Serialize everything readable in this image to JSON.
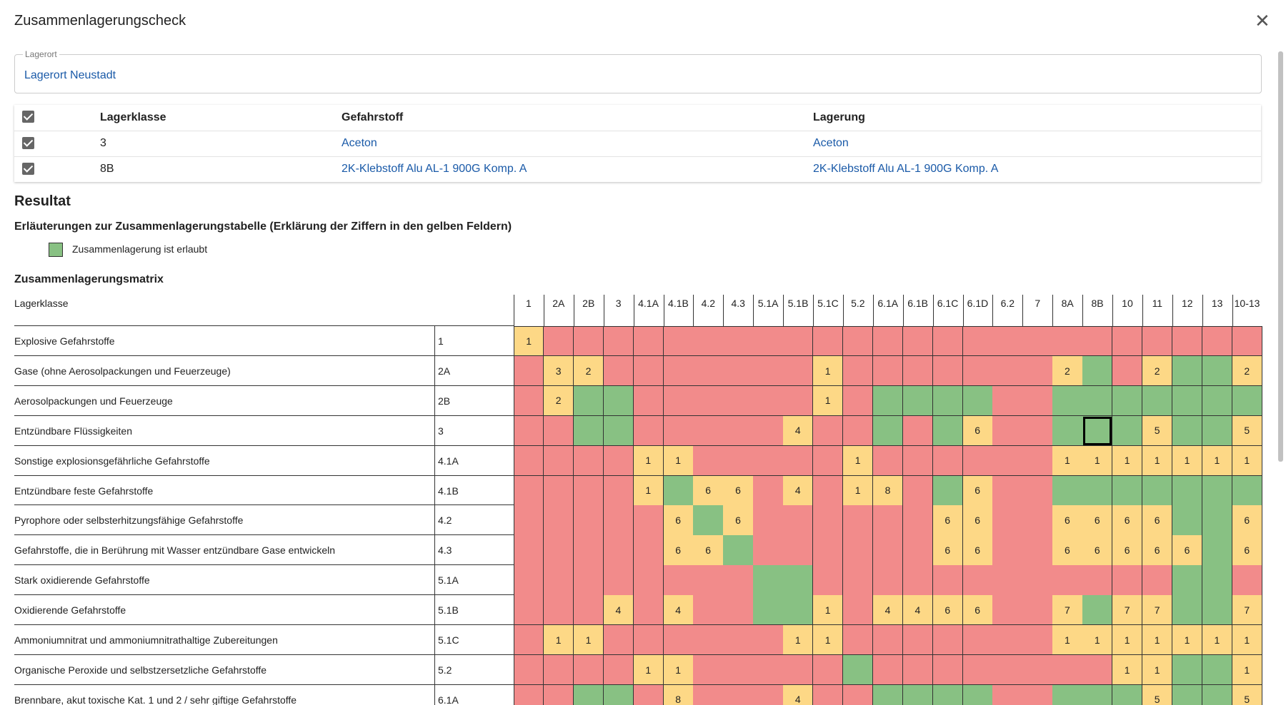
{
  "header": {
    "title": "Zusammenlagerungscheck"
  },
  "location": {
    "label": "Lagerort",
    "value": "Lagerort Neustadt"
  },
  "table": {
    "columns": [
      "Lagerklasse",
      "Gefahrstoff",
      "Lagerung"
    ],
    "rows": [
      [
        "3",
        "Aceton",
        "Aceton"
      ],
      [
        "8B",
        "2K-Klebstoff Alu AL-1 900G Komp. A",
        "2K-Klebstoff Alu AL-1 900G Komp. A"
      ]
    ]
  },
  "result": {
    "title": "Resultat",
    "subtitle": "Erläuterungen zur Zusammenlagerungstabelle (Erklärung der Ziffern in den gelben Feldern)",
    "legend": "Zusammenlagerung ist erlaubt"
  },
  "matrix": {
    "title": "Zusammenlagerungsmatrix",
    "corner": "Lagerklasse",
    "colors": {
      "red": "#f28b8b",
      "green": "#88c183",
      "yellow": "#fdd886"
    },
    "selected": [
      3,
      19
    ],
    "columns": [
      "1",
      "2A",
      "2B",
      "3",
      "4.1A",
      "4.1B",
      "4.2",
      "4.3",
      "5.1A",
      "5.1B",
      "5.1C",
      "5.2",
      "6.1A",
      "6.1B",
      "6.1C",
      "6.1D",
      "6.2",
      "7",
      "8A",
      "8B",
      "10",
      "11",
      "12",
      "13",
      "10-13"
    ],
    "rows": [
      {
        "name": "Explosive Gefahrstoffe",
        "code": "1",
        "cells": [
          1,
          "red",
          "red",
          "red",
          "red",
          "red",
          "red",
          "red",
          "red",
          "red",
          "red",
          "red",
          "red",
          "red",
          "red",
          "red",
          "red",
          "red",
          "red",
          "red",
          "red",
          "red",
          "red",
          "red",
          "red"
        ]
      },
      {
        "name": "Gase (ohne Aerosolpackungen und Feuerzeuge)",
        "code": "2A",
        "cells": [
          "red",
          3,
          2,
          "red",
          "red",
          "red",
          "red",
          "red",
          "red",
          "red",
          1,
          "red",
          "red",
          "red",
          "red",
          "red",
          "red",
          "red",
          2,
          "green",
          "red",
          2,
          "green",
          "green",
          2
        ]
      },
      {
        "name": "Aerosolpackungen und Feuerzeuge",
        "code": "2B",
        "cells": [
          "red",
          2,
          "green",
          "green",
          "red",
          "red",
          "red",
          "red",
          "red",
          "red",
          1,
          "red",
          "green",
          "green",
          "green",
          "green",
          "red",
          "red",
          "green",
          "green",
          "green",
          "green",
          "green",
          "green",
          "green"
        ]
      },
      {
        "name": "Entzündbare Flüssigkeiten",
        "code": "3",
        "cells": [
          "red",
          "red",
          "green",
          "green",
          "red",
          "red",
          "red",
          "red",
          "red",
          4,
          "red",
          "red",
          "green",
          "red",
          "green",
          6,
          "red",
          "red",
          "green",
          "green",
          "green",
          5,
          "green",
          "green",
          5
        ]
      },
      {
        "name": "Sonstige explosionsgefährliche Gefahrstoffe",
        "code": "4.1A",
        "cells": [
          "red",
          "red",
          "red",
          "red",
          1,
          1,
          "red",
          "red",
          "red",
          "red",
          "red",
          1,
          "red",
          "red",
          "red",
          "red",
          "red",
          "red",
          1,
          1,
          1,
          1,
          1,
          1,
          1
        ]
      },
      {
        "name": "Entzündbare feste Gefahrstoffe",
        "code": "4.1B",
        "cells": [
          "red",
          "red",
          "red",
          "red",
          1,
          "green",
          6,
          6,
          "red",
          4,
          "red",
          1,
          8,
          "red",
          "green",
          6,
          "red",
          "red",
          "green",
          "green",
          "green",
          "green",
          "green",
          "green",
          "green"
        ]
      },
      {
        "name": "Pyrophore oder selbsterhitzungsfähige Gefahrstoffe",
        "code": "4.2",
        "cells": [
          "red",
          "red",
          "red",
          "red",
          "red",
          6,
          "green",
          6,
          "red",
          "red",
          "red",
          "red",
          "red",
          "red",
          6,
          6,
          "red",
          "red",
          6,
          6,
          6,
          6,
          "green",
          "green",
          6
        ]
      },
      {
        "name": "Gefahrstoffe, die in Berührung mit Wasser entzündbare Gase entwickeln",
        "code": "4.3",
        "cells": [
          "red",
          "red",
          "red",
          "red",
          "red",
          6,
          6,
          "green",
          "red",
          "red",
          "red",
          "red",
          "red",
          "red",
          6,
          6,
          "red",
          "red",
          6,
          6,
          6,
          6,
          6,
          "green",
          6
        ]
      },
      {
        "name": "Stark oxidierende Gefahrstoffe",
        "code": "5.1A",
        "cells": [
          "red",
          "red",
          "red",
          "red",
          "red",
          "red",
          "red",
          "red",
          "green",
          "green",
          "red",
          "red",
          "red",
          "red",
          "red",
          "red",
          "red",
          "red",
          "red",
          "red",
          "red",
          "red",
          "green",
          "green",
          "red"
        ]
      },
      {
        "name": "Oxidierende Gefahrstoffe",
        "code": "5.1B",
        "cells": [
          "red",
          "red",
          "red",
          4,
          "red",
          4,
          "red",
          "red",
          "green",
          "green",
          1,
          "red",
          4,
          4,
          6,
          6,
          "red",
          "red",
          7,
          "green",
          7,
          7,
          "green",
          "green",
          7
        ]
      },
      {
        "name": "Ammoniumnitrat und ammoniumnitrathaltige Zubereitungen",
        "code": "5.1C",
        "cells": [
          "red",
          1,
          1,
          "red",
          "red",
          "red",
          "red",
          "red",
          "red",
          1,
          1,
          "red",
          "red",
          "red",
          "red",
          "red",
          "red",
          "red",
          1,
          1,
          1,
          1,
          1,
          1,
          1
        ]
      },
      {
        "name": "Organische Peroxide und selbstzersetzliche Gefahrstoffe",
        "code": "5.2",
        "cells": [
          "red",
          "red",
          "red",
          "red",
          1,
          1,
          "red",
          "red",
          "red",
          "red",
          "red",
          "green",
          "red",
          "red",
          "red",
          "red",
          "red",
          "red",
          "red",
          "red",
          1,
          1,
          "green",
          "green",
          1
        ]
      },
      {
        "name": "Brennbare, akut toxische Kat. 1 und 2 / sehr giftige Gefahrstoffe",
        "code": "6.1A",
        "cells": [
          "red",
          "red",
          "green",
          "green",
          "red",
          8,
          "red",
          "red",
          "red",
          4,
          "red",
          "red",
          "green",
          "green",
          "green",
          "green",
          "red",
          "red",
          "green",
          "green",
          "green",
          5,
          "green",
          "green",
          5
        ]
      }
    ]
  }
}
